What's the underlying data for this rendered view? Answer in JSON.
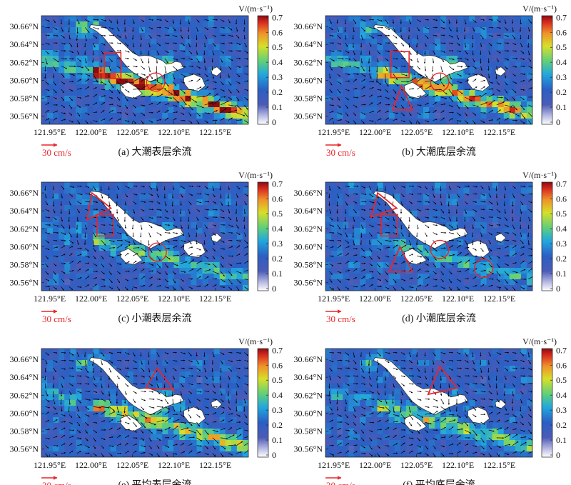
{
  "scale_arrow_label": "30 cm/s",
  "colors": {
    "low": "#ffffff",
    "field": "#3a4fa4",
    "island": "#ffffff",
    "marker": "#e8262c",
    "vector": "#000000"
  },
  "colorbar": {
    "label": "V/(m·s⁻¹)",
    "ticks": [
      "0.7",
      "0.6",
      "0.5",
      "0.4",
      "0.3",
      "0.2",
      "0.1",
      "0"
    ],
    "range": [
      0,
      0.7
    ]
  },
  "chart_data": [
    {
      "type": "heatmap",
      "title": "(a) 大潮表层余流",
      "xticks": [
        "121.95°E",
        "122.00°E",
        "122.05°E",
        "122.10°E",
        "122.15°E"
      ],
      "yticks": [
        "30.66°N",
        "30.64°N",
        "30.62°N",
        "30.60°N",
        "30.58°N",
        "30.56°N"
      ],
      "xlim": [
        121.94,
        122.19
      ],
      "ylim": [
        30.551,
        30.672
      ],
      "intensity": 1.0,
      "markers": [
        {
          "shape": "rect",
          "lon": [
            122.016,
            122.036
          ],
          "lat": [
            30.602,
            30.631
          ]
        },
        {
          "shape": "circle",
          "lon": 122.078,
          "lat": 30.598,
          "r": 0.011
        }
      ]
    },
    {
      "type": "heatmap",
      "title": "(b) 大潮底层余流",
      "xticks": [
        "121.95°E",
        "122.00°E",
        "122.05°E",
        "122.10°E",
        "122.15°E"
      ],
      "yticks": [
        "30.66°N",
        "30.64°N",
        "30.62°N",
        "30.60°N",
        "30.58°N",
        "30.56°N"
      ],
      "xlim": [
        121.94,
        122.19
      ],
      "ylim": [
        30.551,
        30.672
      ],
      "intensity": 0.75,
      "markers": [
        {
          "shape": "rect",
          "lon": [
            122.019,
            122.041
          ],
          "lat": [
            30.603,
            30.632
          ]
        },
        {
          "shape": "circle",
          "lon": 122.078,
          "lat": 30.598,
          "r": 0.011
        },
        {
          "shape": "triangle",
          "lon": [
            122.032,
            122.021,
            122.045
          ],
          "lat": [
            30.594,
            30.567,
            30.567
          ]
        }
      ]
    },
    {
      "type": "heatmap",
      "title": "(c) 小潮表层余流",
      "xticks": [
        "121.95°E",
        "122.00°E",
        "122.05°E",
        "122.10°E",
        "122.15°E"
      ],
      "yticks": [
        "30.66°N",
        "30.64°N",
        "30.62°N",
        "30.60°N",
        "30.58°N",
        "30.56°N"
      ],
      "xlim": [
        121.94,
        122.19
      ],
      "ylim": [
        30.551,
        30.672
      ],
      "intensity": 0.4,
      "markers": [
        {
          "shape": "triangle",
          "lon": [
            122.001,
            121.995,
            122.024
          ],
          "lat": [
            30.66,
            30.63,
            30.643
          ]
        },
        {
          "shape": "rect",
          "lon": [
            122.007,
            122.027
          ],
          "lat": [
            30.612,
            30.636
          ]
        },
        {
          "shape": "circle",
          "lon": 122.08,
          "lat": 30.594,
          "r": 0.011
        }
      ]
    },
    {
      "type": "heatmap",
      "title": "(d) 小潮底层余流",
      "xticks": [
        "121.95°E",
        "122.00°E",
        "122.05°E",
        "122.10°E",
        "122.15°E"
      ],
      "yticks": [
        "30.66°N",
        "30.64°N",
        "30.62°N",
        "30.60°N",
        "30.58°N",
        "30.56°N"
      ],
      "xlim": [
        121.94,
        122.19
      ],
      "ylim": [
        30.551,
        30.672
      ],
      "intensity": 0.3,
      "markers": [
        {
          "shape": "triangle",
          "lon": [
            122.003,
            121.995,
            122.026
          ],
          "lat": [
            30.66,
            30.633,
            30.643
          ]
        },
        {
          "shape": "rect",
          "lon": [
            122.007,
            122.027
          ],
          "lat": [
            30.612,
            30.636
          ]
        },
        {
          "shape": "circle",
          "lon": 122.078,
          "lat": 30.597,
          "r": 0.011
        },
        {
          "shape": "triangle",
          "lon": [
            122.03,
            122.017,
            122.045
          ],
          "lat": [
            30.6,
            30.572,
            30.572
          ]
        },
        {
          "shape": "circle",
          "lon": 122.131,
          "lat": 30.576,
          "r": 0.011
        }
      ]
    },
    {
      "type": "heatmap",
      "title": "(e) 平均表层余流",
      "xticks": [
        "121.95°E",
        "122.00°E",
        "122.05°E",
        "122.10°E",
        "122.15°E"
      ],
      "yticks": [
        "30.66°N",
        "30.64°N",
        "30.62°N",
        "30.60°N",
        "30.58°N",
        "30.56°N"
      ],
      "xlim": [
        121.94,
        122.19
      ],
      "ylim": [
        30.551,
        30.672
      ],
      "intensity": 0.65,
      "markers": [
        {
          "shape": "triangle",
          "lon": [
            122.08,
            122.066,
            122.1
          ],
          "lat": [
            30.65,
            30.628,
            30.626
          ]
        }
      ]
    },
    {
      "type": "heatmap",
      "title": "(f) 平均底层余流",
      "xticks": [
        "121.95°E",
        "122.00°E",
        "122.05°E",
        "122.10°E",
        "122.15°E"
      ],
      "yticks": [
        "30.66°N",
        "30.64°N",
        "30.62°N",
        "30.60°N",
        "30.58°N",
        "30.56°N"
      ],
      "xlim": [
        121.94,
        122.19
      ],
      "ylim": [
        30.551,
        30.672
      ],
      "intensity": 0.5,
      "markers": [
        {
          "shape": "triangle",
          "lon": [
            122.078,
            122.064,
            122.099
          ],
          "lat": [
            30.652,
            30.621,
            30.628
          ]
        }
      ]
    }
  ]
}
